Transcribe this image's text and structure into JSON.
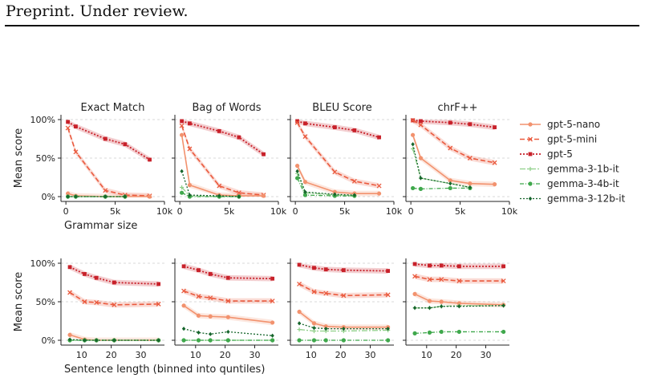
{
  "header": {
    "text": "Preprint. Under review."
  },
  "colors": {
    "gpt-5-nano": "#f2926e",
    "gpt-5-mini": "#ea5a3e",
    "gpt-5": "#c8212a",
    "gemma-3-1b-it": "#90d08a",
    "gemma-3-4b-it": "#3fa84c",
    "gemma-3-12b-it": "#16652c"
  },
  "legend": [
    "gpt-5-nano",
    "gpt-5-mini",
    "gpt-5",
    "gemma-3-1b-it",
    "gemma-3-4b-it",
    "gemma-3-12b-it"
  ],
  "chart_data": [
    {
      "type": "line",
      "row": "top",
      "panel_titles": [
        "Exact Match",
        "Bag of Words",
        "BLEU Score",
        "chrF++"
      ],
      "xlabel": "Grammar size",
      "ylabel": "Mean score",
      "xlim": [
        -500,
        10000
      ],
      "ylim": [
        0,
        1
      ],
      "xticks": [
        0,
        5000,
        10000
      ],
      "xtick_labels": [
        "0",
        "5k",
        "10k"
      ],
      "yticks": [
        0,
        0.5,
        1
      ],
      "ytick_labels": [
        "0%",
        "50%",
        "100%"
      ],
      "grid": "horizontal dashed",
      "panels": [
        {
          "title": "Exact Match",
          "series": [
            {
              "name": "gpt-5",
              "x": [
                200,
                1000,
                4000,
                6000,
                8500
              ],
              "y": [
                0.97,
                0.91,
                0.75,
                0.68,
                0.48
              ]
            },
            {
              "name": "gpt-5-mini",
              "x": [
                200,
                1000,
                4000,
                6000,
                8500
              ],
              "y": [
                0.89,
                0.58,
                0.08,
                0.02,
                0.01
              ]
            },
            {
              "name": "gpt-5-nano",
              "x": [
                200,
                1000,
                4000,
                6000,
                8500
              ],
              "y": [
                0.04,
                0.01,
                0.0,
                0.0,
                0.0
              ]
            },
            {
              "name": "gemma-3-1b-it",
              "x": [
                200,
                1000,
                4000,
                6000
              ],
              "y": [
                0.0,
                0.0,
                0.0,
                0.0
              ]
            },
            {
              "name": "gemma-3-4b-it",
              "x": [
                200,
                1000,
                4000,
                6000
              ],
              "y": [
                0.0,
                0.0,
                0.0,
                0.0
              ]
            },
            {
              "name": "gemma-3-12b-it",
              "x": [
                200,
                1000,
                4000,
                6000
              ],
              "y": [
                0.0,
                0.0,
                0.0,
                0.0
              ]
            }
          ]
        },
        {
          "title": "Bag of Words",
          "series": [
            {
              "name": "gpt-5",
              "x": [
                200,
                1000,
                4000,
                6000,
                8500
              ],
              "y": [
                0.98,
                0.95,
                0.85,
                0.77,
                0.55
              ]
            },
            {
              "name": "gpt-5-mini",
              "x": [
                200,
                1000,
                4000,
                6000,
                8500
              ],
              "y": [
                0.92,
                0.62,
                0.14,
                0.05,
                0.02
              ]
            },
            {
              "name": "gpt-5-nano",
              "x": [
                200,
                1000,
                4000,
                6000,
                8500
              ],
              "y": [
                0.8,
                0.15,
                0.02,
                0.01,
                0.01
              ]
            },
            {
              "name": "gemma-3-1b-it",
              "x": [
                200,
                1000,
                4000,
                6000
              ],
              "y": [
                0.12,
                0.01,
                0.0,
                0.0
              ]
            },
            {
              "name": "gemma-3-4b-it",
              "x": [
                200,
                1000,
                4000,
                6000
              ],
              "y": [
                0.05,
                0.0,
                0.0,
                0.0
              ]
            },
            {
              "name": "gemma-3-12b-it",
              "x": [
                200,
                1000,
                4000,
                6000
              ],
              "y": [
                0.33,
                0.02,
                0.01,
                0.0
              ]
            }
          ]
        },
        {
          "title": "BLEU Score",
          "series": [
            {
              "name": "gpt-5",
              "x": [
                200,
                1000,
                4000,
                6000,
                8500
              ],
              "y": [
                0.98,
                0.95,
                0.9,
                0.86,
                0.77
              ]
            },
            {
              "name": "gpt-5-mini",
              "x": [
                200,
                1000,
                4000,
                6000,
                8500
              ],
              "y": [
                0.96,
                0.78,
                0.32,
                0.2,
                0.14
              ]
            },
            {
              "name": "gpt-5-nano",
              "x": [
                200,
                1000,
                4000,
                6000,
                8500
              ],
              "y": [
                0.4,
                0.19,
                0.06,
                0.04,
                0.04
              ]
            },
            {
              "name": "gemma-3-1b-it",
              "x": [
                200,
                1000,
                4000,
                6000
              ],
              "y": [
                0.3,
                0.05,
                0.02,
                0.01
              ]
            },
            {
              "name": "gemma-3-4b-it",
              "x": [
                200,
                1000,
                4000,
                6000
              ],
              "y": [
                0.24,
                0.02,
                0.01,
                0.01
              ]
            },
            {
              "name": "gemma-3-12b-it",
              "x": [
                200,
                1000,
                4000,
                6000
              ],
              "y": [
                0.33,
                0.06,
                0.03,
                0.02
              ]
            }
          ]
        },
        {
          "title": "chrF++",
          "series": [
            {
              "name": "gpt-5",
              "x": [
                200,
                1000,
                4000,
                6000,
                8500
              ],
              "y": [
                0.99,
                0.98,
                0.96,
                0.94,
                0.9
              ]
            },
            {
              "name": "gpt-5-mini",
              "x": [
                200,
                1000,
                4000,
                6000,
                8500
              ],
              "y": [
                0.99,
                0.93,
                0.63,
                0.5,
                0.44
              ]
            },
            {
              "name": "gpt-5-nano",
              "x": [
                200,
                1000,
                4000,
                6000,
                8500
              ],
              "y": [
                0.8,
                0.5,
                0.21,
                0.17,
                0.16
              ]
            },
            {
              "name": "gemma-3-1b-it",
              "x": [
                200,
                1000,
                4000,
                6000
              ],
              "y": [
                0.62,
                0.24,
                0.17,
                0.12
              ]
            },
            {
              "name": "gemma-3-4b-it",
              "x": [
                200,
                1000,
                4000,
                6000
              ],
              "y": [
                0.11,
                0.1,
                0.11,
                0.11
              ]
            },
            {
              "name": "gemma-3-12b-it",
              "x": [
                200,
                1000,
                4000,
                6000
              ],
              "y": [
                0.68,
                0.24,
                0.17,
                0.12
              ]
            }
          ]
        }
      ]
    },
    {
      "type": "line",
      "row": "bottom",
      "xlabel": "Sentence length (binned into quntiles)",
      "ylabel": "Mean score",
      "xlim": [
        3,
        38
      ],
      "ylim": [
        0,
        1
      ],
      "xticks": [
        10,
        20,
        30
      ],
      "xtick_labels": [
        "10",
        "20",
        "30"
      ],
      "yticks": [
        0,
        0.5,
        1
      ],
      "ytick_labels": [
        "0%",
        "50%",
        "100%"
      ],
      "grid": "horizontal dashed",
      "panels": [
        {
          "series": [
            {
              "name": "gpt-5",
              "x": [
                6,
                11,
                15,
                21,
                36
              ],
              "y": [
                0.95,
                0.86,
                0.81,
                0.75,
                0.73
              ]
            },
            {
              "name": "gpt-5-mini",
              "x": [
                6,
                11,
                15,
                21,
                36
              ],
              "y": [
                0.62,
                0.5,
                0.49,
                0.46,
                0.47
              ]
            },
            {
              "name": "gpt-5-nano",
              "x": [
                6,
                11,
                15,
                21,
                36
              ],
              "y": [
                0.07,
                0.01,
                0.0,
                0.0,
                0.0
              ]
            },
            {
              "name": "gemma-3-1b-it",
              "x": [
                6,
                11,
                15,
                21,
                36
              ],
              "y": [
                0.0,
                0.0,
                0.0,
                0.0,
                0.0
              ]
            },
            {
              "name": "gemma-3-4b-it",
              "x": [
                6,
                11,
                15,
                21,
                36
              ],
              "y": [
                0.0,
                0.0,
                0.0,
                0.0,
                0.0
              ]
            },
            {
              "name": "gemma-3-12b-it",
              "x": [
                6,
                11,
                15,
                21,
                36
              ],
              "y": [
                0.01,
                0.0,
                0.0,
                0.0,
                0.0
              ]
            }
          ]
        },
        {
          "series": [
            {
              "name": "gpt-5",
              "x": [
                6,
                11,
                15,
                21,
                36
              ],
              "y": [
                0.96,
                0.91,
                0.86,
                0.81,
                0.8
              ]
            },
            {
              "name": "gpt-5-mini",
              "x": [
                6,
                11,
                15,
                21,
                36
              ],
              "y": [
                0.64,
                0.57,
                0.55,
                0.51,
                0.51
              ]
            },
            {
              "name": "gpt-5-nano",
              "x": [
                6,
                11,
                15,
                21,
                36
              ],
              "y": [
                0.45,
                0.32,
                0.31,
                0.3,
                0.23
              ]
            },
            {
              "name": "gemma-3-1b-it",
              "x": [
                6,
                11,
                15,
                21,
                36
              ],
              "y": [
                0.0,
                0.0,
                0.0,
                0.0,
                0.0
              ]
            },
            {
              "name": "gemma-3-4b-it",
              "x": [
                6,
                11,
                15,
                21,
                36
              ],
              "y": [
                0.0,
                0.0,
                0.0,
                0.0,
                0.0
              ]
            },
            {
              "name": "gemma-3-12b-it",
              "x": [
                6,
                11,
                15,
                21,
                36
              ],
              "y": [
                0.15,
                0.1,
                0.08,
                0.11,
                0.06
              ]
            }
          ]
        },
        {
          "series": [
            {
              "name": "gpt-5",
              "x": [
                6,
                11,
                15,
                21,
                36
              ],
              "y": [
                0.98,
                0.94,
                0.92,
                0.91,
                0.9
              ]
            },
            {
              "name": "gpt-5-mini",
              "x": [
                6,
                11,
                15,
                21,
                36
              ],
              "y": [
                0.73,
                0.63,
                0.61,
                0.58,
                0.59
              ]
            },
            {
              "name": "gpt-5-nano",
              "x": [
                6,
                11,
                15,
                21,
                36
              ],
              "y": [
                0.37,
                0.22,
                0.18,
                0.17,
                0.17
              ]
            },
            {
              "name": "gemma-3-1b-it",
              "x": [
                6,
                11,
                15,
                21,
                36
              ],
              "y": [
                0.14,
                0.12,
                0.12,
                0.12,
                0.13
              ]
            },
            {
              "name": "gemma-3-4b-it",
              "x": [
                6,
                11,
                15,
                21,
                36
              ],
              "y": [
                0.0,
                0.0,
                0.0,
                0.0,
                0.0
              ]
            },
            {
              "name": "gemma-3-12b-it",
              "x": [
                6,
                11,
                15,
                21,
                36
              ],
              "y": [
                0.22,
                0.16,
                0.15,
                0.15,
                0.15
              ]
            }
          ]
        },
        {
          "series": [
            {
              "name": "gpt-5",
              "x": [
                6,
                11,
                15,
                21,
                36
              ],
              "y": [
                0.99,
                0.97,
                0.97,
                0.96,
                0.96
              ]
            },
            {
              "name": "gpt-5-mini",
              "x": [
                6,
                11,
                15,
                21,
                36
              ],
              "y": [
                0.83,
                0.79,
                0.79,
                0.77,
                0.77
              ]
            },
            {
              "name": "gpt-5-nano",
              "x": [
                6,
                11,
                15,
                21,
                36
              ],
              "y": [
                0.6,
                0.51,
                0.5,
                0.48,
                0.46
              ]
            },
            {
              "name": "gemma-3-1b-it",
              "x": [
                6,
                11,
                15,
                21,
                36
              ],
              "y": [
                0.42,
                0.42,
                0.44,
                0.45,
                0.45
              ]
            },
            {
              "name": "gemma-3-4b-it",
              "x": [
                6,
                11,
                15,
                21,
                36
              ],
              "y": [
                0.09,
                0.1,
                0.11,
                0.11,
                0.11
              ]
            },
            {
              "name": "gemma-3-12b-it",
              "x": [
                6,
                11,
                15,
                21,
                36
              ],
              "y": [
                0.42,
                0.42,
                0.44,
                0.44,
                0.45
              ]
            }
          ]
        }
      ]
    }
  ]
}
